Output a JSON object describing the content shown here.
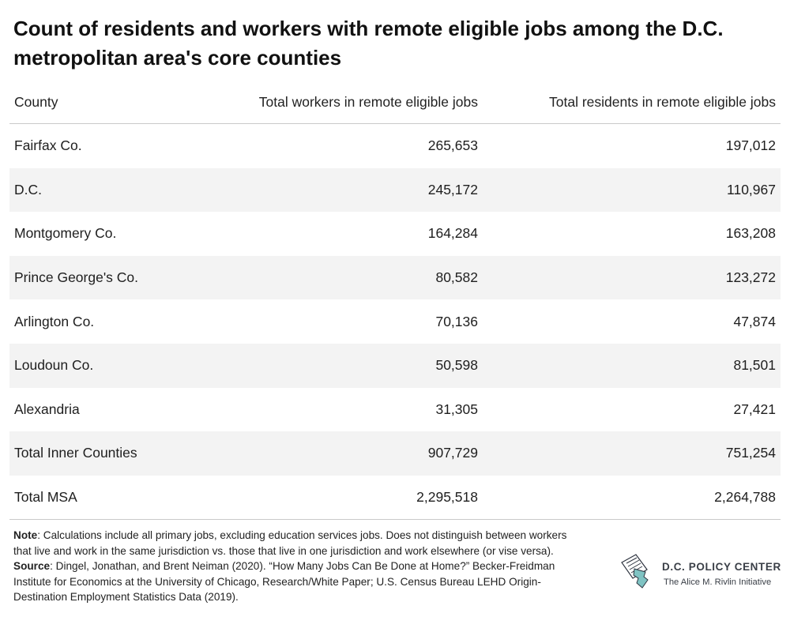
{
  "title": "Count of residents and workers with remote eligible jobs among the D.C. metropolitan area's core counties",
  "table": {
    "headers": [
      "County",
      "Total workers in remote eligible jobs",
      "Total residents in remote eligible jobs"
    ],
    "rows": [
      [
        "Fairfax Co.",
        "265,653",
        "197,012"
      ],
      [
        "D.C.",
        "245,172",
        "110,967"
      ],
      [
        "Montgomery Co.",
        "164,284",
        "163,208"
      ],
      [
        "Prince George's Co.",
        "80,582",
        "123,272"
      ],
      [
        "Arlington Co.",
        "70,136",
        "47,874"
      ],
      [
        "Loudoun Co.",
        "50,598",
        "81,501"
      ],
      [
        "Alexandria",
        "31,305",
        "27,421"
      ],
      [
        "Total Inner Counties",
        "907,729",
        "751,254"
      ],
      [
        "Total MSA",
        "2,295,518",
        "2,264,788"
      ]
    ]
  },
  "notes": {
    "note_label": "Note",
    "note_text": ": Calculations include all primary jobs, excluding education services jobs. Does not distinguish between workers that live and work in the same jurisdiction vs. those that live in one jurisdiction and work elsewhere (or vise versa).",
    "source_label": "Source",
    "source_text": ": Dingel, Jonathan, and Brent Neiman (2020). “How Many Jobs Can Be Done at Home?” Becker-Freidman Institute for Economics at the University of Chicago, Research/White Paper; U.S. Census Bureau LEHD Origin-Destination Employment Statistics Data (2019)."
  },
  "logo": {
    "name": "D.C. POLICY CENTER",
    "tagline": "The Alice M. Rivlin Initiative",
    "colors": {
      "text": "#3a3f47",
      "accent": "#7fc3c3",
      "outline": "#2e3440"
    }
  }
}
